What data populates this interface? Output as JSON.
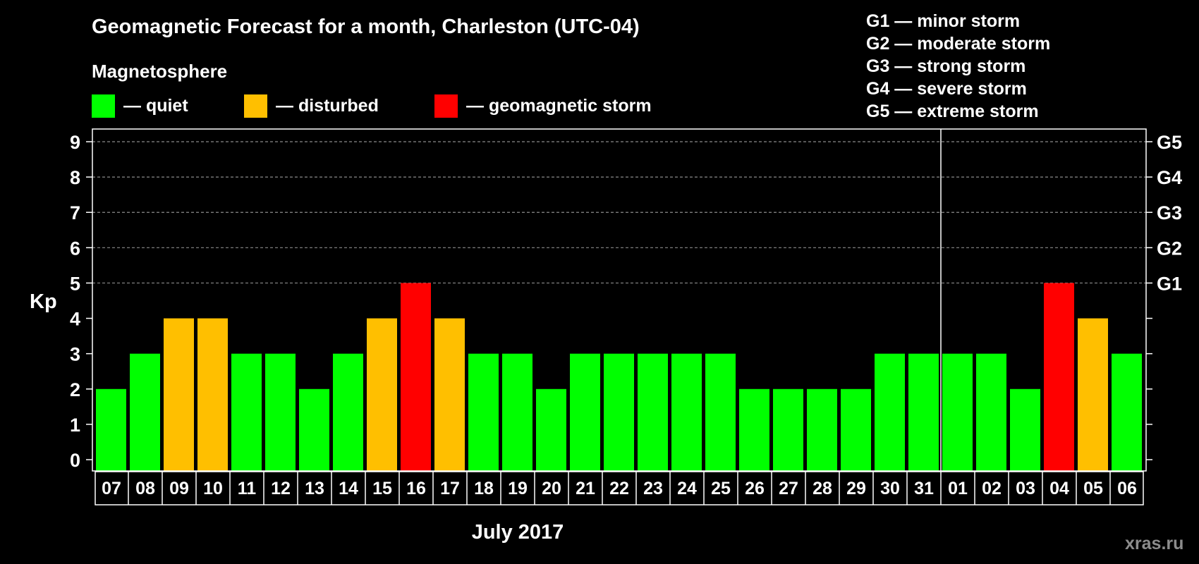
{
  "title": "Geomagnetic Forecast for a month, Charleston (UTC-04)",
  "subtitle": "Magnetosphere",
  "legend": [
    {
      "label": "— quiet",
      "color": "#00ff00"
    },
    {
      "label": "— disturbed",
      "color": "#ffbf00"
    },
    {
      "label": "— geomagnetic storm",
      "color": "#ff0000"
    }
  ],
  "storm_scale": [
    "G1 — minor storm",
    "G2 — moderate storm",
    "G3 — strong storm",
    "G4 — severe storm",
    "G5 — extreme storm"
  ],
  "watermark": "xras.ru",
  "chart_data": {
    "type": "bar",
    "ylabel": "Kp",
    "xlabel": "July 2017",
    "ylim": [
      0,
      9
    ],
    "yticks": [
      0,
      1,
      2,
      3,
      4,
      5,
      6,
      7,
      8,
      9
    ],
    "right_axis": [
      {
        "kp": 5,
        "label": "G1"
      },
      {
        "kp": 6,
        "label": "G2"
      },
      {
        "kp": 7,
        "label": "G3"
      },
      {
        "kp": 8,
        "label": "G4"
      },
      {
        "kp": 9,
        "label": "G5"
      }
    ],
    "grid_dashed_at": [
      5,
      6,
      7,
      8,
      9
    ],
    "categories": [
      "07",
      "08",
      "09",
      "10",
      "11",
      "12",
      "13",
      "14",
      "15",
      "16",
      "17",
      "18",
      "19",
      "20",
      "21",
      "22",
      "23",
      "24",
      "25",
      "26",
      "27",
      "28",
      "29",
      "30",
      "31",
      "01",
      "02",
      "03",
      "04",
      "05",
      "06"
    ],
    "values": [
      2,
      3,
      4,
      4,
      3,
      3,
      2,
      3,
      4,
      5,
      4,
      3,
      3,
      2,
      3,
      3,
      3,
      3,
      3,
      2,
      2,
      2,
      2,
      3,
      3,
      3,
      3,
      2,
      5,
      4,
      3
    ],
    "month_separator_after": "31",
    "color_thresholds": {
      "quiet": "#00ff00",
      "disturbed": "#ffbf00",
      "storm": "#ff0000"
    }
  }
}
